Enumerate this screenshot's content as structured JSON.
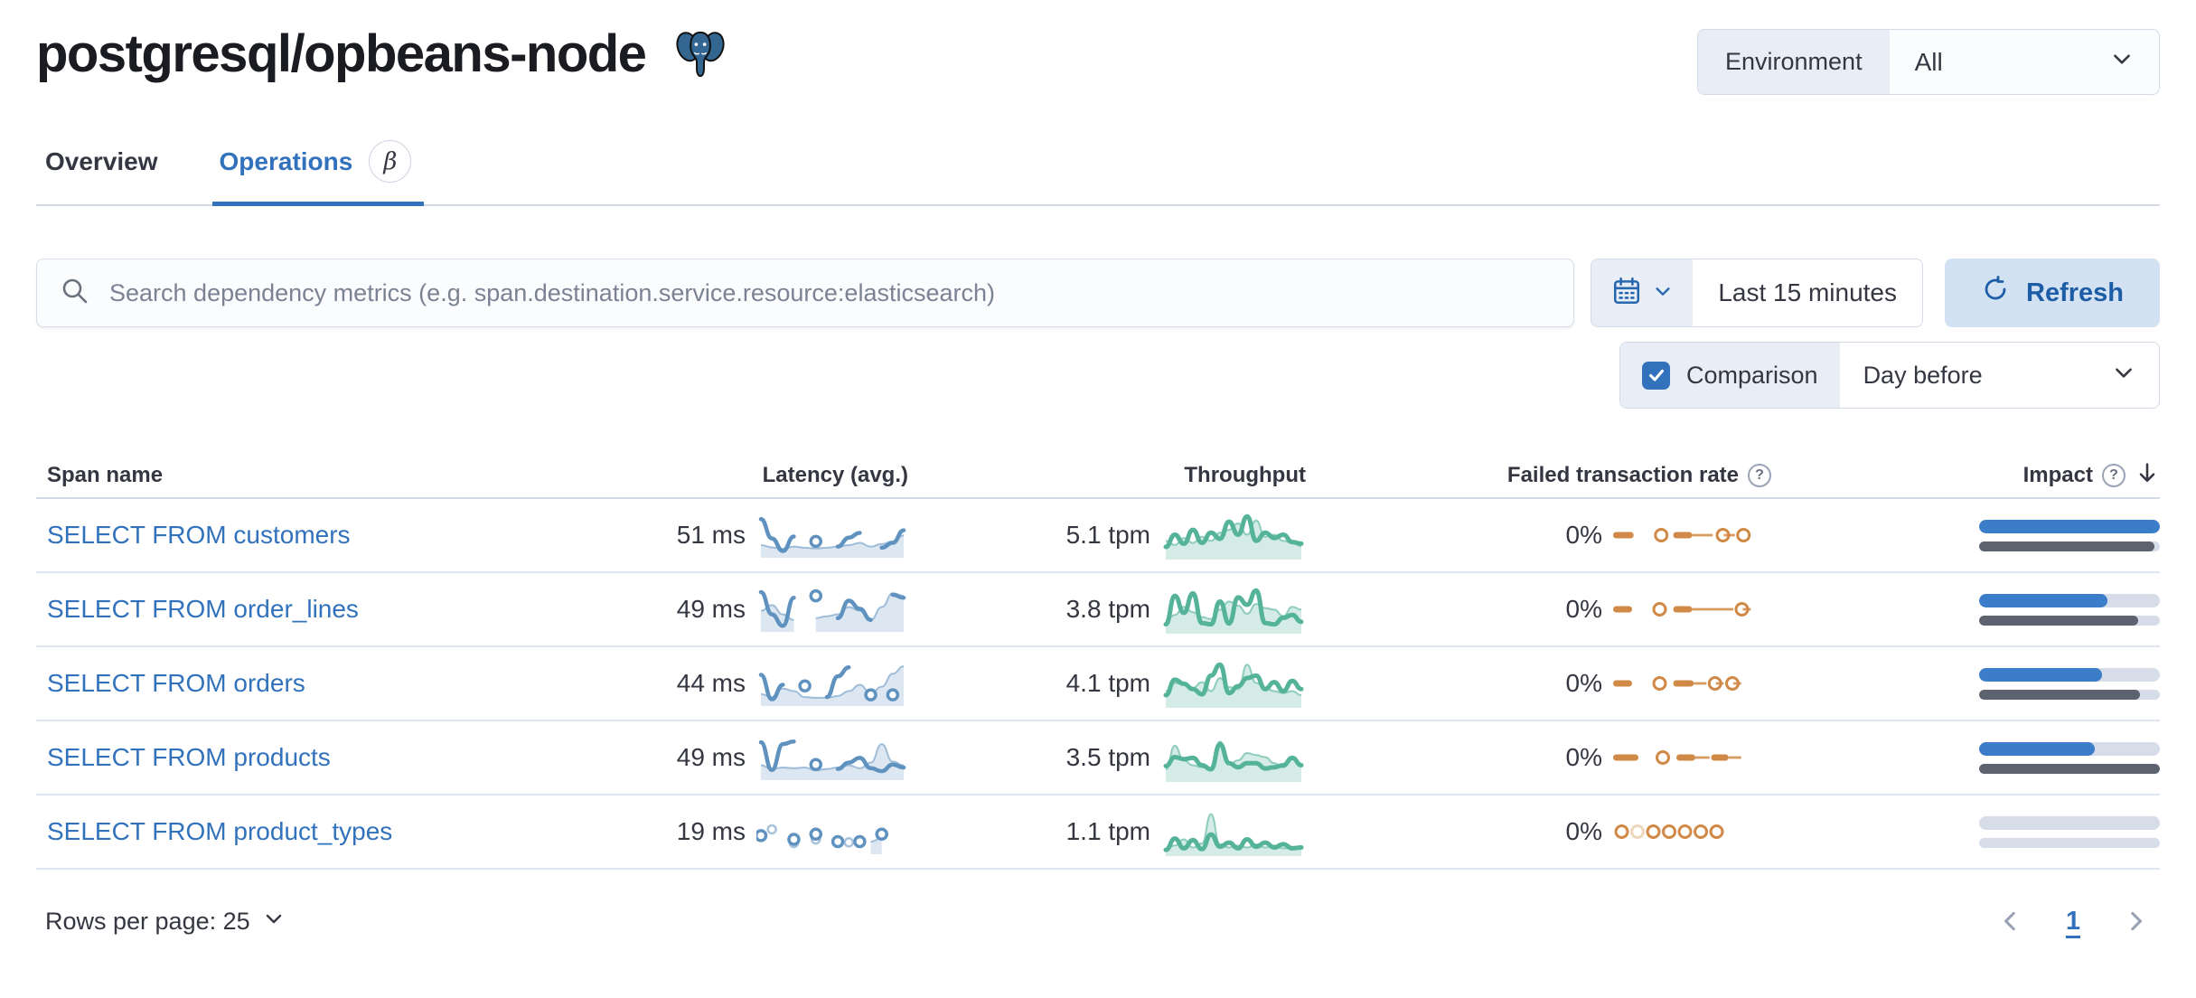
{
  "colors": {
    "primary": "#3272bd",
    "text": "#343741",
    "muted": "#69707d",
    "border": "#d3dae6",
    "prepend_bg": "#e9edf5",
    "refresh_bg": "#d3e2f3",
    "refresh_text": "#1d5da5",
    "latency_line": "#6092c0",
    "latency_fill": "rgba(96,146,192,0.22)",
    "latency_edge": "rgba(96,146,192,0.55)",
    "throughput_line": "#54b399",
    "throughput_fill": "rgba(84,179,153,0.25)",
    "throughput_edge": "rgba(84,179,153,0.6)",
    "failed_color": "#d08946",
    "impact_bar": "#3c7dc9",
    "impact_prev_bar": "#5c636e",
    "impact_track": "#d6dce8",
    "postgres_blue": "#336791"
  },
  "header": {
    "title": "postgresql/opbeans-node",
    "environment_label": "Environment",
    "environment_value": "All"
  },
  "tabs": {
    "overview": "Overview",
    "operations": "Operations",
    "beta_badge": "β"
  },
  "toolbar": {
    "search_placeholder": "Search dependency metrics (e.g. span.destination.service.resource:elasticsearch)",
    "time_range": "Last 15 minutes",
    "refresh_label": "Refresh",
    "comparison_label": "Comparison",
    "comparison_checked": true,
    "comparison_value": "Day before"
  },
  "table": {
    "headers": {
      "span_name": "Span name",
      "latency": "Latency (avg.)",
      "throughput": "Throughput",
      "failed_rate": "Failed transaction rate",
      "impact": "Impact"
    },
    "rows": [
      {
        "span_name": "SELECT FROM customers",
        "latency": "51 ms",
        "latency_spark": {
          "line": [
            0.92,
            0.4,
            0.06,
            0.45,
            null,
            0.32,
            null,
            0.18,
            0.42,
            0.55,
            null,
            0.15,
            0.28,
            0.62
          ],
          "area": [
            0.22,
            0.16,
            0.12,
            0.18,
            0.15,
            0.13,
            0.15,
            0.18,
            0.22,
            0.28,
            0.18,
            0.25,
            0.32,
            0.48
          ]
        },
        "throughput": "5.1 tpm",
        "throughput_spark": {
          "line": [
            0.2,
            0.5,
            0.28,
            0.62,
            0.3,
            0.55,
            0.4,
            0.82,
            0.5,
            0.95,
            0.35,
            0.55,
            0.42,
            0.5,
            0.32,
            0.28
          ],
          "area": [
            0.35,
            0.25,
            0.42,
            0.3,
            0.45,
            0.35,
            0.55,
            0.62,
            0.78,
            0.5,
            0.85,
            0.45,
            0.5,
            0.35,
            0.3,
            0.22
          ]
        },
        "failed_rate": "0%",
        "failed_spark": [
          {
            "t": "dash",
            "x": 0,
            "w": 13
          },
          {
            "t": "ring",
            "x": 27
          },
          {
            "t": "dash",
            "x": 38,
            "w": 12
          },
          {
            "t": "line",
            "x": 50,
            "w": 13
          },
          {
            "t": "ring",
            "x": 66
          },
          {
            "t": "line",
            "x": 70,
            "w": 7
          },
          {
            "t": "ring",
            "x": 79
          }
        ],
        "impact_pct": 100,
        "impact_prev_pct": 97
      },
      {
        "span_name": "SELECT FROM order_lines",
        "latency": "49 ms",
        "latency_spark": {
          "line": [
            0.95,
            0.35,
            0.04,
            0.8,
            null,
            0.85,
            null,
            0.25,
            0.72,
            0.5,
            0.2,
            null,
            0.88,
            0.8
          ],
          "area": [
            0.45,
            0.6,
            0.35,
            0.2,
            null,
            0.25,
            0.3,
            0.35,
            0.55,
            0.45,
            0.2,
            0.55,
            0.92,
            0.85
          ]
        },
        "throughput": "3.8 tpm",
        "throughput_spark": {
          "line": [
            0.12,
            0.82,
            0.4,
            0.88,
            0.15,
            0.12,
            0.68,
            0.14,
            0.78,
            0.6,
            0.95,
            0.15,
            0.12,
            0.28,
            0.35,
            0.18
          ],
          "area": [
            0.22,
            0.35,
            0.55,
            0.42,
            0.3,
            0.25,
            0.48,
            0.68,
            0.58,
            0.38,
            0.62,
            0.52,
            0.48,
            0.32,
            0.55,
            0.48
          ]
        },
        "failed_rate": "0%",
        "failed_spark": [
          {
            "t": "dash",
            "x": 0,
            "w": 12
          },
          {
            "t": "ring",
            "x": 26
          },
          {
            "t": "dash",
            "x": 38,
            "w": 12
          },
          {
            "t": "line",
            "x": 50,
            "w": 26
          },
          {
            "t": "ring",
            "x": 78
          },
          {
            "t": "line",
            "x": 82,
            "w": 5
          }
        ],
        "impact_pct": 71,
        "impact_prev_pct": 88
      },
      {
        "span_name": "SELECT FROM orders",
        "latency": "44 ms",
        "latency_spark": {
          "line": [
            0.72,
            0.06,
            0.45,
            null,
            0.42,
            null,
            0.12,
            0.68,
            0.92,
            null,
            0.18,
            null,
            0.18,
            null
          ],
          "area": [
            0.2,
            0.12,
            0.35,
            0.28,
            0.12,
            0.1,
            0.1,
            0.15,
            0.28,
            0.45,
            0.22,
            0.4,
            0.75,
            0.95
          ]
        },
        "throughput": "4.1 tpm",
        "throughput_spark": {
          "line": [
            0.2,
            0.58,
            0.48,
            0.35,
            0.22,
            0.68,
            0.95,
            0.25,
            0.42,
            0.62,
            0.68,
            0.35,
            0.52,
            0.3,
            0.55,
            0.35
          ],
          "area": [
            0.3,
            0.5,
            0.45,
            0.38,
            0.52,
            0.3,
            0.62,
            0.4,
            0.35,
            0.95,
            0.5,
            0.38,
            0.3,
            0.25,
            0.3,
            0.2
          ]
        },
        "failed_rate": "0%",
        "failed_spark": [
          {
            "t": "dash",
            "x": 0,
            "w": 12
          },
          {
            "t": "ring",
            "x": 26
          },
          {
            "t": "dash",
            "x": 38,
            "w": 13
          },
          {
            "t": "line",
            "x": 51,
            "w": 8
          },
          {
            "t": "ring",
            "x": 61
          },
          {
            "t": "line",
            "x": 65,
            "w": 5
          },
          {
            "t": "ring",
            "x": 72
          },
          {
            "t": "line",
            "x": 76,
            "w": 5
          }
        ],
        "impact_pct": 68,
        "impact_prev_pct": 89
      },
      {
        "span_name": "SELECT FROM products",
        "latency": "49 ms",
        "latency_spark": {
          "line": [
            0.9,
            0.15,
            0.85,
            0.92,
            null,
            0.3,
            null,
            0.18,
            0.35,
            0.48,
            0.2,
            0.12,
            0.3,
            0.22
          ],
          "area": [
            0.28,
            0.18,
            0.22,
            0.2,
            0.22,
            0.14,
            0.18,
            0.22,
            0.28,
            0.2,
            0.35,
            0.85,
            0.38,
            0.28
          ]
        },
        "throughput": "3.5 tpm",
        "throughput_spark": {
          "line": [
            0.28,
            0.5,
            0.45,
            0.48,
            0.3,
            0.2,
            0.82,
            0.35,
            0.25,
            0.35,
            0.35,
            0.22,
            0.25,
            0.3,
            0.48,
            0.3
          ],
          "area": [
            0.2,
            0.78,
            0.42,
            0.3,
            0.25,
            0.2,
            0.88,
            0.32,
            0.42,
            0.6,
            0.55,
            0.5,
            0.35,
            0.25,
            0.45,
            0.3
          ]
        },
        "failed_rate": "0%",
        "failed_spark": [
          {
            "t": "dash",
            "x": 0,
            "w": 16
          },
          {
            "t": "ring",
            "x": 28
          },
          {
            "t": "dash",
            "x": 40,
            "w": 12
          },
          {
            "t": "line",
            "x": 52,
            "w": 9
          },
          {
            "t": "dash",
            "x": 62,
            "w": 11
          },
          {
            "t": "line",
            "x": 73,
            "w": 8
          }
        ],
        "impact_pct": 64,
        "impact_prev_pct": 100
      },
      {
        "span_name": "SELECT FROM product_types",
        "latency": "19 ms",
        "latency_spark": {
          "line": [
            0.38,
            null,
            null,
            0.28,
            null,
            0.42,
            null,
            0.22,
            null,
            0.22,
            null,
            0.42,
            null,
            null
          ],
          "area": [
            null,
            0.55,
            null,
            0.18,
            null,
            0.28,
            null,
            null,
            0.2,
            null,
            0.22,
            0.32,
            null,
            null
          ]
        },
        "throughput": "1.1 tpm",
        "throughput_spark": {
          "line": [
            0.04,
            0.32,
            0.08,
            0.28,
            0.06,
            0.42,
            0.12,
            0.22,
            0.08,
            0.3,
            0.12,
            0.22,
            0.1,
            0.18,
            0.08,
            0.1
          ],
          "area": [
            0.08,
            0.15,
            0.3,
            0.1,
            0.2,
            0.92,
            0.18,
            0.1,
            0.15,
            0.1,
            0.18,
            0.1,
            0.15,
            0.08,
            0.1,
            0.06
          ]
        },
        "failed_rate": "0%",
        "failed_spark": [
          {
            "t": "ring",
            "x": 2
          },
          {
            "t": "faded",
            "x": 12
          },
          {
            "t": "ring",
            "x": 22
          },
          {
            "t": "ring",
            "x": 32
          },
          {
            "t": "ring",
            "x": 42
          },
          {
            "t": "ring",
            "x": 52
          },
          {
            "t": "ring",
            "x": 62
          }
        ],
        "impact_pct": 0,
        "impact_prev_pct": 0
      }
    ]
  },
  "footer": {
    "rows_per_page": "Rows per page: 25",
    "current_page": "1"
  }
}
